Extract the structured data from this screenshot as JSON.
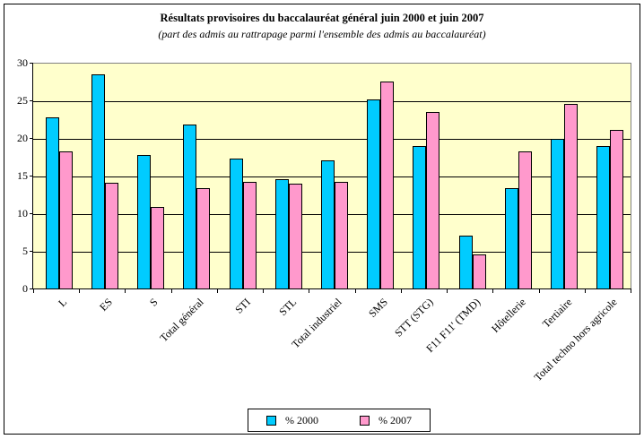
{
  "chart_data": {
    "type": "bar",
    "title": "Résultats provisoires du baccalauréat général juin 2000 et juin 2007",
    "subtitle": "(part des admis au rattrapage parmi l'ensemble des admis au baccalauréat)",
    "categories": [
      "L",
      "ES",
      "S",
      "Total général",
      "STI",
      "STL",
      "Total industriel",
      "SMS",
      "STT (STG)",
      "F11 F11' (TMD)",
      "Hôtellerie",
      "Tertiaire",
      "Total techno hors agricole"
    ],
    "series": [
      {
        "name": "% 2000",
        "color": "#00CCFF",
        "values": [
          22.9,
          28.6,
          17.9,
          21.9,
          17.4,
          14.7,
          17.1,
          25.2,
          19.1,
          7.1,
          13.5,
          20.0,
          19.1
        ]
      },
      {
        "name": "% 2007",
        "color": "#FF99CC",
        "values": [
          18.3,
          14.2,
          11.0,
          13.4,
          14.3,
          14.0,
          14.3,
          27.6,
          23.6,
          4.6,
          18.3,
          24.6,
          21.2
        ]
      }
    ],
    "xlabel": "",
    "ylabel": "",
    "ylim": [
      0,
      30
    ],
    "yticks": [
      0,
      5,
      10,
      15,
      20,
      25,
      30
    ],
    "grid": true,
    "legend_position": "bottom",
    "colors": {
      "plot_background": "#FFFFCC",
      "gridline": "#000000",
      "plot_border": "#808080",
      "frame_border": "#000000",
      "bar_border": "#000000"
    }
  }
}
